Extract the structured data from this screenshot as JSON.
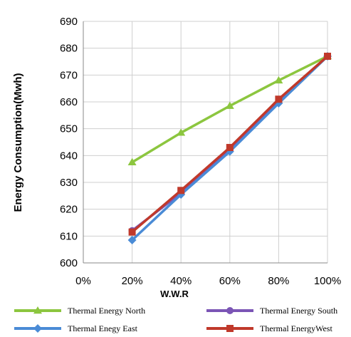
{
  "chart_data": {
    "type": "line",
    "title": "",
    "xlabel": "W.W.R",
    "ylabel": "Energy Consumption(Mwh)",
    "categories": [
      "0%",
      "20%",
      "40%",
      "60%",
      "80%",
      "100%"
    ],
    "ylim": [
      600,
      690
    ],
    "yticks": [
      600,
      610,
      620,
      630,
      640,
      650,
      660,
      670,
      680,
      690
    ],
    "grid": true,
    "legend_position": "bottom",
    "series": [
      {
        "name": "Thermal Energy North",
        "values": [
          null,
          637.5,
          648.5,
          658.5,
          668,
          677
        ],
        "color": "#8cc63f",
        "marker": "triangle"
      },
      {
        "name": "Thermal Energy South",
        "values": [
          null,
          612,
          626,
          642,
          660,
          677
        ],
        "color": "#7b55b5",
        "marker": "circle"
      },
      {
        "name": "Thermal Enegy East",
        "values": [
          null,
          608.5,
          625.5,
          641.5,
          659.5,
          677
        ],
        "color": "#4a8bd6",
        "marker": "diamond"
      },
      {
        "name": "Thermal EnergyWest",
        "values": [
          null,
          611.5,
          627,
          643,
          661,
          677
        ],
        "color": "#c0392b",
        "marker": "square"
      }
    ]
  }
}
